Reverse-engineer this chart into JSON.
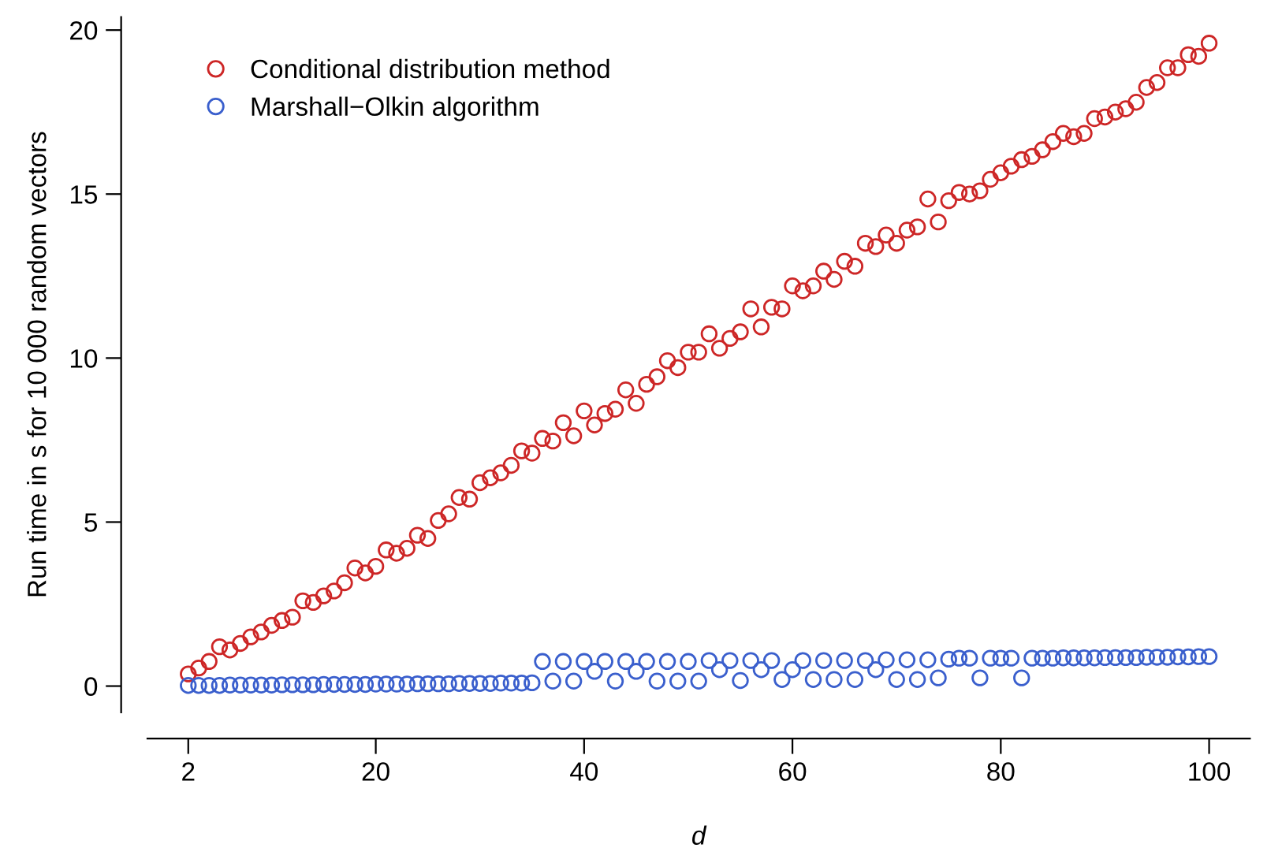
{
  "chart_data": {
    "type": "scatter",
    "xlabel": "d",
    "ylabel": "Run time in s for 10 000 random vectors",
    "x": [
      2,
      3,
      4,
      5,
      6,
      7,
      8,
      9,
      10,
      11,
      12,
      13,
      14,
      15,
      16,
      17,
      18,
      19,
      20,
      21,
      22,
      23,
      24,
      25,
      26,
      27,
      28,
      29,
      30,
      31,
      32,
      33,
      34,
      35,
      36,
      37,
      38,
      39,
      40,
      41,
      42,
      43,
      44,
      45,
      46,
      47,
      48,
      49,
      50,
      51,
      52,
      53,
      54,
      55,
      56,
      57,
      58,
      59,
      60,
      61,
      62,
      63,
      64,
      65,
      66,
      67,
      68,
      69,
      70,
      71,
      72,
      73,
      74,
      75,
      76,
      77,
      78,
      79,
      80,
      81,
      82,
      83,
      84,
      85,
      86,
      87,
      88,
      89,
      90,
      91,
      92,
      93,
      94,
      95,
      96,
      97,
      98,
      99,
      100
    ],
    "series": [
      {
        "name": "Conditional distribution method",
        "color": "#cd2626",
        "values": [
          0.37,
          0.55,
          0.75,
          1.2,
          1.1,
          1.3,
          1.5,
          1.65,
          1.85,
          2.0,
          2.1,
          2.6,
          2.55,
          2.75,
          2.9,
          3.15,
          3.6,
          3.45,
          3.65,
          4.15,
          4.05,
          4.2,
          4.6,
          4.5,
          5.05,
          5.25,
          5.75,
          5.7,
          6.2,
          6.35,
          6.5,
          6.73,
          7.17,
          7.1,
          7.55,
          7.47,
          8.03,
          7.63,
          8.39,
          7.96,
          8.31,
          8.44,
          9.03,
          8.62,
          9.2,
          9.43,
          9.92,
          9.71,
          10.18,
          10.18,
          10.74,
          10.3,
          10.6,
          10.8,
          11.5,
          10.95,
          11.55,
          11.5,
          12.2,
          12.05,
          12.2,
          12.65,
          12.4,
          12.95,
          12.8,
          13.5,
          13.4,
          13.75,
          13.5,
          13.9,
          14.0,
          14.85,
          14.15,
          14.8,
          15.05,
          15.0,
          15.1,
          15.45,
          15.65,
          15.85,
          16.05,
          16.15,
          16.35,
          16.6,
          16.85,
          16.75,
          16.85,
          17.3,
          17.35,
          17.5,
          17.6,
          17.8,
          18.25,
          18.4,
          18.85,
          18.85,
          19.25,
          19.2,
          19.6
        ]
      },
      {
        "name": "Marshall−Olkin algorithm",
        "color": "#3a5fcd",
        "values": [
          0.02,
          0.02,
          0.02,
          0.02,
          0.03,
          0.03,
          0.03,
          0.03,
          0.03,
          0.04,
          0.04,
          0.04,
          0.04,
          0.05,
          0.05,
          0.05,
          0.05,
          0.05,
          0.06,
          0.06,
          0.06,
          0.06,
          0.07,
          0.07,
          0.07,
          0.07,
          0.08,
          0.08,
          0.08,
          0.08,
          0.09,
          0.09,
          0.09,
          0.1,
          0.75,
          0.15,
          0.75,
          0.15,
          0.75,
          0.45,
          0.75,
          0.15,
          0.75,
          0.45,
          0.75,
          0.15,
          0.75,
          0.15,
          0.75,
          0.15,
          0.78,
          0.5,
          0.78,
          0.17,
          0.78,
          0.5,
          0.78,
          0.2,
          0.5,
          0.78,
          0.2,
          0.78,
          0.2,
          0.78,
          0.2,
          0.78,
          0.5,
          0.8,
          0.2,
          0.8,
          0.2,
          0.8,
          0.25,
          0.82,
          0.85,
          0.85,
          0.25,
          0.85,
          0.85,
          0.85,
          0.25,
          0.85,
          0.85,
          0.85,
          0.86,
          0.86,
          0.86,
          0.86,
          0.87,
          0.87,
          0.87,
          0.87,
          0.88,
          0.88,
          0.88,
          0.89,
          0.89,
          0.9,
          0.9
        ]
      }
    ],
    "xlim": [
      -1.92,
      103.92
    ],
    "ylim": [
      -0.8,
      20.4
    ],
    "xticks": [
      2,
      20,
      40,
      60,
      80,
      100
    ],
    "yticks": [
      0,
      5,
      10,
      15,
      20
    ],
    "marker": "circle",
    "grid": false,
    "legend": "top left"
  }
}
